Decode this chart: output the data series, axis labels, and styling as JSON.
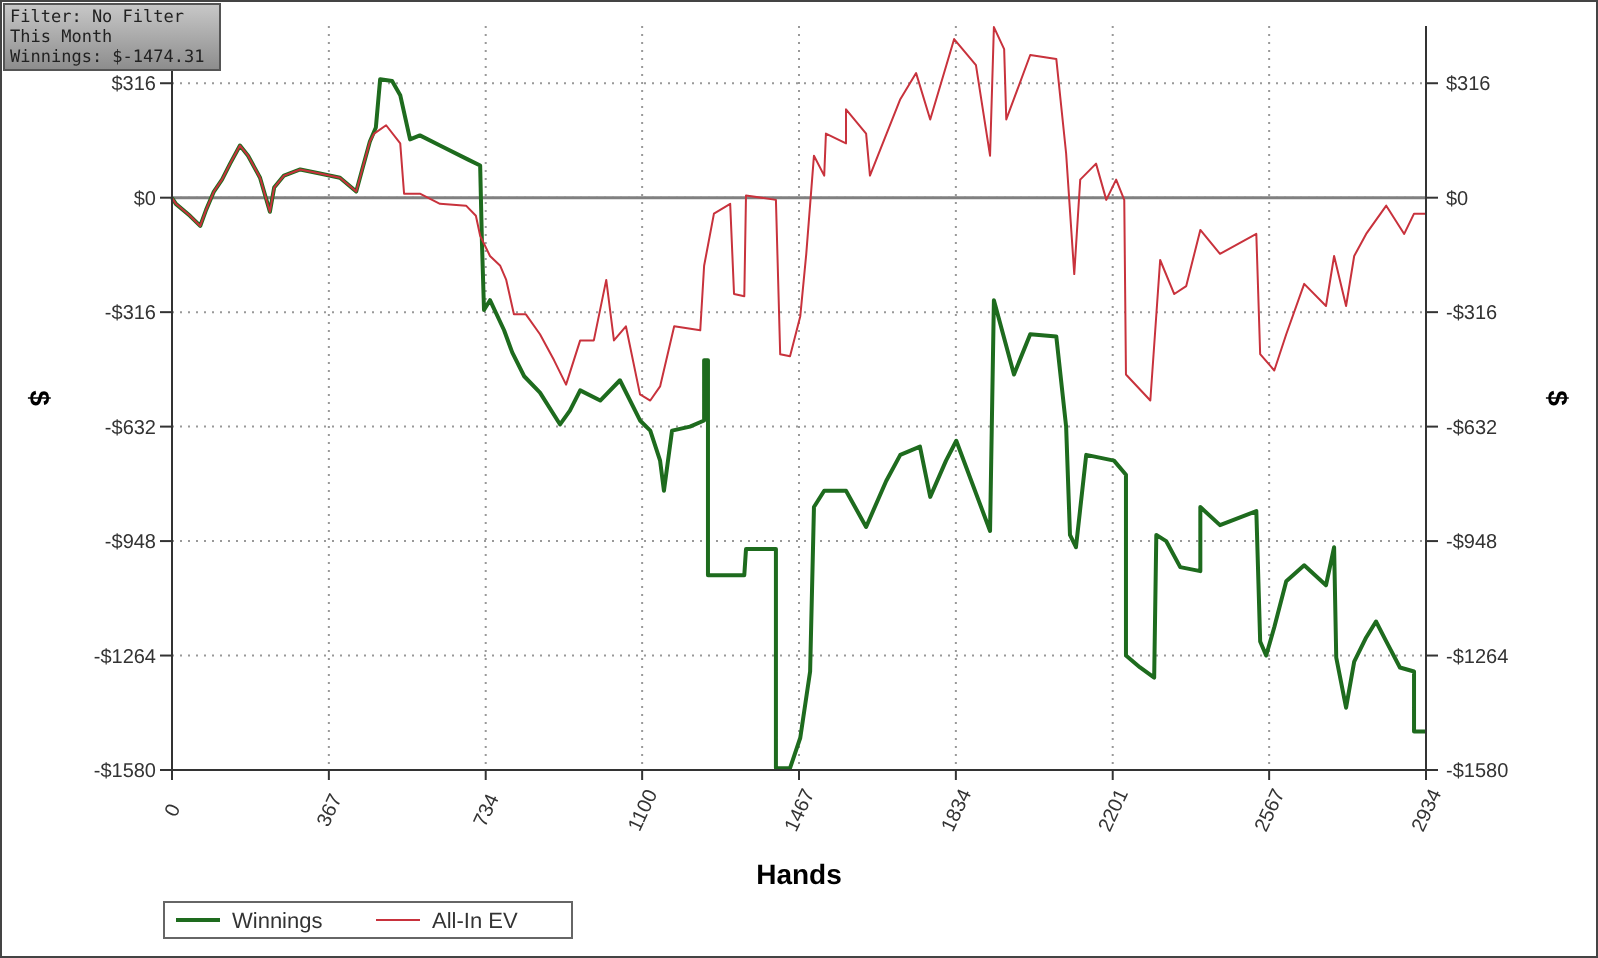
{
  "chart_data": {
    "type": "line",
    "xlabel": "Hands",
    "ylabel": "$",
    "y2label": "$",
    "annotations": [
      "Filter: No Filter",
      "This Month",
      "Winnings: $-1474.31"
    ],
    "xlim": [
      0,
      2934
    ],
    "xticks": [
      0,
      367,
      734,
      1100,
      1467,
      1834,
      2201,
      2567,
      2934
    ],
    "ylim": [
      -1580,
      474
    ],
    "yticks": [
      {
        "value": -1580,
        "label": "-$1580"
      },
      {
        "value": -1264,
        "label": "-$1264"
      },
      {
        "value": -948,
        "label": "-$948"
      },
      {
        "value": -632,
        "label": "-$632"
      },
      {
        "value": -316,
        "label": "-$316"
      },
      {
        "value": 0,
        "label": "$0"
      },
      {
        "value": 316,
        "label": "$316"
      }
    ],
    "y2lim": [
      -1580,
      474
    ],
    "y2ticks": [
      {
        "value": -1580,
        "label": "-$1580"
      },
      {
        "value": -1264,
        "label": "-$1264"
      },
      {
        "value": -948,
        "label": "-$948"
      },
      {
        "value": -632,
        "label": "-$632"
      },
      {
        "value": -316,
        "label": "-$316"
      },
      {
        "value": 0,
        "label": "$0"
      },
      {
        "value": 316,
        "label": "$316"
      }
    ],
    "grid": true,
    "legend": "bottom left",
    "marker": "none",
    "line_style": "solid",
    "ref_lines": [
      {
        "axis": "y",
        "value": 0,
        "color": "#808080"
      }
    ],
    "series": [
      {
        "name": "Winnings",
        "color": "#1e6b1e",
        "x": [
          0,
          9,
          42,
          66,
          80,
          98,
          117,
          136,
          159,
          178,
          206,
          229,
          239,
          262,
          300,
          346,
          393,
          431,
          445,
          463,
          477,
          487,
          515,
          534,
          557,
          580,
          627,
          693,
          721,
          725,
          730,
          744,
          777,
          796,
          824,
          861,
          908,
          931,
          955,
          1002,
          1048,
          1095,
          1119,
          1142,
          1151,
          1170,
          1212,
          1245,
          1245,
          1254,
          1254,
          1339,
          1343,
          1413,
          1413,
          1446,
          1470,
          1493,
          1502,
          1526,
          1577,
          1624,
          1671,
          1704,
          1750,
          1774,
          1811,
          1835,
          1914,
          1923,
          1970,
          2008,
          2069,
          2092,
          2101,
          2115,
          2139,
          2204,
          2232,
          2232,
          2265,
          2298,
          2303,
          2326,
          2359,
          2406,
          2406,
          2452,
          2537,
          2546,
          2560,
          2579,
          2607,
          2649,
          2700,
          2719,
          2724,
          2747,
          2766,
          2794,
          2817,
          2841,
          2873,
          2906,
          2906,
          2934
        ],
        "values": [
          0,
          -17,
          -50,
          -78,
          -33,
          17,
          50,
          94,
          144,
          116,
          55,
          -39,
          28,
          61,
          78,
          67,
          55,
          17,
          78,
          155,
          194,
          327,
          322,
          283,
          161,
          172,
          144,
          105,
          89,
          -116,
          -310,
          -283,
          -366,
          -427,
          -493,
          -538,
          -626,
          -588,
          -532,
          -560,
          -504,
          -615,
          -643,
          -726,
          -809,
          -643,
          -632,
          -615,
          -449,
          -449,
          -1042,
          -1042,
          -970,
          -970,
          -1575,
          -1575,
          -1491,
          -1308,
          -854,
          -809,
          -809,
          -909,
          -782,
          -710,
          -687,
          -826,
          -726,
          -671,
          -920,
          -283,
          -488,
          -377,
          -383,
          -632,
          -931,
          -965,
          -710,
          -726,
          -765,
          -1264,
          -1297,
          -1325,
          -931,
          -948,
          -1020,
          -1031,
          -854,
          -904,
          -865,
          -1225,
          -1264,
          -1186,
          -1059,
          -1015,
          -1070,
          -965,
          -1270,
          -1408,
          -1281,
          -1214,
          -1170,
          -1225,
          -1297,
          -1308,
          -1474,
          -1474
        ]
      },
      {
        "name": "All-In EV",
        "color": "#c8323c",
        "x": [
          0,
          9,
          42,
          66,
          80,
          98,
          117,
          136,
          159,
          178,
          206,
          229,
          239,
          262,
          300,
          346,
          393,
          431,
          445,
          463,
          473,
          501,
          534,
          543,
          580,
          627,
          688,
          711,
          721,
          744,
          768,
          782,
          800,
          828,
          861,
          894,
          922,
          955,
          987,
          1016,
          1034,
          1062,
          1095,
          1119,
          1142,
          1175,
          1236,
          1245,
          1268,
          1306,
          1315,
          1339,
          1343,
          1413,
          1423,
          1446,
          1470,
          1484,
          1502,
          1526,
          1530,
          1577,
          1577,
          1624,
          1633,
          1704,
          1741,
          1774,
          1830,
          1881,
          1914,
          1923,
          1947,
          1952,
          2008,
          2069,
          2092,
          2111,
          2125,
          2162,
          2186,
          2209,
          2228,
          2232,
          2289,
          2312,
          2345,
          2373,
          2406,
          2452,
          2537,
          2546,
          2579,
          2607,
          2649,
          2700,
          2719,
          2747,
          2766,
          2794,
          2841,
          2883,
          2906,
          2934
        ],
        "values": [
          0,
          -17,
          -50,
          -78,
          -33,
          17,
          50,
          94,
          144,
          116,
          55,
          -39,
          28,
          61,
          78,
          67,
          55,
          17,
          78,
          155,
          177,
          200,
          150,
          11,
          11,
          -17,
          -22,
          -50,
          -105,
          -161,
          -188,
          -227,
          -322,
          -322,
          -377,
          -449,
          -516,
          -394,
          -394,
          -227,
          -394,
          -355,
          -543,
          -560,
          -521,
          -355,
          -366,
          -188,
          -44,
          -17,
          -266,
          -272,
          6,
          -6,
          -432,
          -438,
          -327,
          -155,
          116,
          61,
          177,
          150,
          244,
          177,
          61,
          272,
          344,
          216,
          438,
          366,
          116,
          471,
          410,
          216,
          394,
          383,
          122,
          -211,
          50,
          94,
          -6,
          50,
          -6,
          -488,
          -560,
          -172,
          -266,
          -244,
          -89,
          -155,
          -100,
          -432,
          -477,
          -377,
          -238,
          -299,
          -161,
          -299,
          -161,
          -100,
          -22,
          -100,
          -44,
          -44
        ]
      }
    ]
  }
}
